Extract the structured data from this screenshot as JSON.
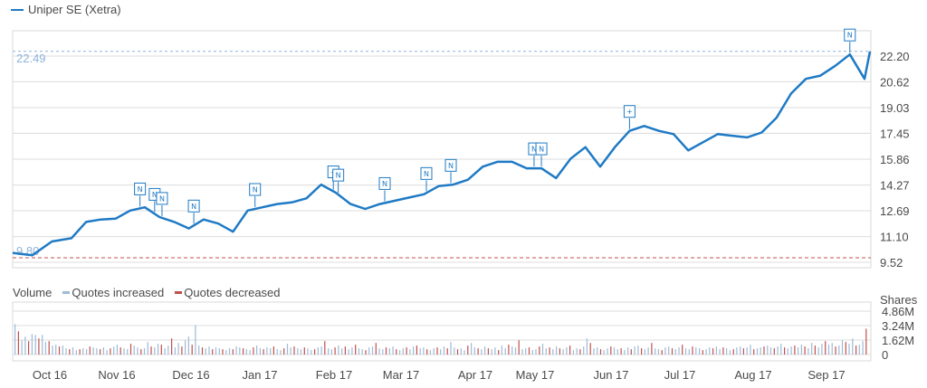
{
  "chart_data": {
    "type": "line",
    "series": [
      {
        "name": "Uniper SE (Xetra)",
        "x": [
          0,
          8,
          16,
          24,
          30,
          36,
          42,
          48,
          54,
          60,
          66,
          72,
          78,
          84,
          90,
          96,
          102,
          108,
          114,
          120,
          126,
          132,
          138,
          144,
          150,
          156,
          162,
          168,
          174,
          180,
          186,
          192,
          198,
          204,
          210,
          216,
          222,
          228,
          234,
          240,
          246,
          252,
          258,
          264,
          270,
          276,
          282,
          288,
          294,
          300,
          306,
          312,
          318,
          324,
          330,
          336,
          342,
          348
        ],
        "values": [
          10.1,
          9.95,
          10.8,
          11.0,
          12.0,
          12.15,
          12.2,
          12.7,
          12.9,
          12.3,
          12.0,
          11.6,
          12.15,
          11.9,
          11.4,
          12.7,
          12.9,
          13.1,
          13.2,
          13.45,
          14.3,
          13.8,
          13.1,
          12.8,
          13.1,
          13.3,
          13.5,
          13.7,
          14.2,
          14.3,
          14.6,
          15.4,
          15.7,
          15.7,
          15.3,
          15.3,
          14.7,
          15.9,
          16.6,
          15.4,
          16.6,
          17.6,
          17.9,
          17.6,
          17.4,
          16.4,
          16.9,
          17.4,
          17.3,
          17.2,
          17.5,
          18.4,
          19.9,
          20.8,
          21.0,
          21.6,
          22.3,
          20.8
        ],
        "values_end": 22.49
      }
    ],
    "current_value": "22.49",
    "low_value": "9.80",
    "yticks": [
      "22.20",
      "20.62",
      "19.03",
      "17.45",
      "15.86",
      "14.27",
      "12.69",
      "11.10",
      "9.52"
    ],
    "ylim": [
      9.52,
      22.2
    ],
    "xlabels": [
      "Oct 16",
      "Nov 16",
      "Dec 16",
      "Jan 17",
      "Feb 17",
      "Mar 17",
      "Apr 17",
      "May 17",
      "Jun 17",
      "Jul 17",
      "Aug 17",
      "Sep 17"
    ],
    "markers": [
      "N",
      "N",
      "N",
      "N",
      "N",
      "+",
      "N",
      "N",
      "N",
      "N",
      "N",
      "N",
      "+",
      "N"
    ],
    "grid": true,
    "colors": {
      "line": "#1f7ac4",
      "increase": "#9dbad6",
      "decrease": "#c0504d",
      "grid": "#dcdcdc"
    }
  },
  "volume": {
    "title": "Volume",
    "legend_increase": "Quotes increased",
    "legend_decrease": "Quotes decreased",
    "unit_label": "Shares",
    "yticks": [
      "4.86M",
      "3.24M",
      "1.62M",
      "0"
    ],
    "ymax": 4.86,
    "bars": [
      3.4,
      2.6,
      1.6,
      2.0,
      1.5,
      2.3,
      2.2,
      1.8,
      2.2,
      1.4,
      1.5,
      1.0,
      1.1,
      0.9,
      1.0,
      0.7,
      0.6,
      0.8,
      0.5,
      0.6,
      0.7,
      0.6,
      0.9,
      0.8,
      0.7,
      0.6,
      0.8,
      0.5,
      0.7,
      0.9,
      1.1,
      0.8,
      0.7,
      0.6,
      1.2,
      1.0,
      0.8,
      0.6,
      0.7,
      1.4,
      0.9,
      0.8,
      1.2,
      1.1,
      0.7,
      1.0,
      1.8,
      0.8,
      1.3,
      0.9,
      1.6,
      2.0,
      1.1,
      3.3,
      1.0,
      0.8,
      0.7,
      0.9,
      0.6,
      0.8,
      0.7,
      0.6,
      0.5,
      0.7,
      0.6,
      0.9,
      0.8,
      0.7,
      0.6,
      0.5,
      0.8,
      1.0,
      0.7,
      0.6,
      0.8,
      0.7,
      0.9,
      0.6,
      0.5,
      0.7,
      1.2,
      0.8,
      0.9,
      0.7,
      0.6,
      0.8,
      0.7,
      0.5,
      0.6,
      0.8,
      0.9,
      1.5,
      0.7,
      0.6,
      0.8,
      1.0,
      0.7,
      0.9,
      0.6,
      0.8,
      1.1,
      0.7,
      0.6,
      0.5,
      0.8,
      0.9,
      1.3,
      0.7,
      0.6,
      0.8,
      0.7,
      0.9,
      0.6,
      0.5,
      0.7,
      0.8,
      0.6,
      0.9,
      1.0,
      0.7,
      0.8,
      0.6,
      0.5,
      0.7,
      0.8,
      0.6,
      0.9,
      0.7,
      1.4,
      0.8,
      0.6,
      0.7,
      0.5,
      1.0,
      1.3,
      0.8,
      0.7,
      0.6,
      0.9,
      0.7,
      0.6,
      0.8,
      0.5,
      1.0,
      0.7,
      1.1,
      0.9,
      0.8,
      1.6,
      0.6,
      0.7,
      0.8,
      0.5,
      0.6,
      0.9,
      1.2,
      0.7,
      0.8,
      0.6,
      0.9,
      0.7,
      0.6,
      0.8,
      1.0,
      0.5,
      0.7,
      0.6,
      0.9,
      1.8,
      1.3,
      0.7,
      0.8,
      0.6,
      0.5,
      0.7,
      0.9,
      0.8,
      0.6,
      0.7,
      0.5,
      0.8,
      0.6,
      0.9,
      1.0,
      0.7,
      0.6,
      0.8,
      1.3,
      0.7,
      0.6,
      0.5,
      0.8,
      0.9,
      0.7,
      0.6,
      0.8,
      1.1,
      0.7,
      0.6,
      0.9,
      0.8,
      0.7,
      0.5,
      0.6,
      0.8,
      0.7,
      0.9,
      0.6,
      0.8,
      0.7,
      0.5,
      0.6,
      0.8,
      0.9,
      0.7,
      0.8,
      1.1,
      0.6,
      0.7,
      0.8,
      0.9,
      1.0,
      0.8,
      0.7,
      0.9,
      1.2,
      0.8,
      0.7,
      0.9,
      1.0,
      0.8,
      1.1,
      0.9,
      0.7,
      1.3,
      1.0,
      0.8,
      1.2,
      1.5,
      1.1,
      1.3,
      0.9,
      1.0,
      1.6,
      1.4,
      1.2,
      1.8,
      1.0,
      1.1,
      1.5,
      2.9
    ]
  }
}
